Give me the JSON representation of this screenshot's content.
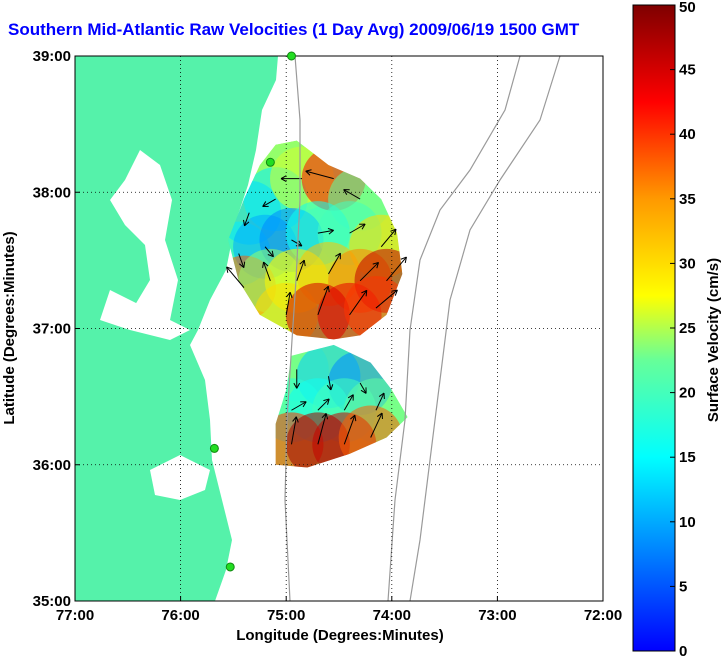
{
  "title": "Southern Mid-Atlantic Raw Velocities (1 Day Avg) 2009/06/19 1500 GMT",
  "colors": {
    "land": "#55f2aa",
    "water": "#ffffff",
    "bathymetry": "#9a9a9a",
    "vectors": "#000000",
    "title": "#0000ff",
    "station": "#22dd22"
  },
  "chart_data": {
    "type": "heatmap",
    "title": "Southern Mid-Atlantic Raw Velocities (1 Day Avg) 2009/06/19 1500 GMT",
    "xlabel": "Longitude (Degrees:Minutes)",
    "ylabel": "Latitude (Degrees:Minutes)",
    "xlim": [
      -77,
      -72
    ],
    "ylim": [
      35,
      39
    ],
    "x_tick_labels": [
      "77:00",
      "76:00",
      "75:00",
      "74:00",
      "73:00",
      "72:00"
    ],
    "x_tick_values": [
      -77,
      -76,
      -75,
      -74,
      -73,
      -72
    ],
    "y_tick_labels": [
      "35:00",
      "36:00",
      "37:00",
      "38:00",
      "39:00"
    ],
    "y_tick_values": [
      35,
      36,
      37,
      38,
      39
    ],
    "grid": "dotted",
    "colorbar": {
      "label": "Surface Velocity (cm/s)",
      "min": 0,
      "max": 50,
      "tick_labels": [
        "0",
        "5",
        "10",
        "15",
        "20",
        "25",
        "30",
        "35",
        "40",
        "45",
        "50"
      ],
      "tick_values": [
        0,
        5,
        10,
        15,
        20,
        25,
        30,
        35,
        40,
        45,
        50
      ]
    },
    "stations": [
      {
        "lon": -74.95,
        "lat": 39.0
      },
      {
        "lon": -75.15,
        "lat": 38.22
      },
      {
        "lon": -75.68,
        "lat": 36.12
      },
      {
        "lon": -75.53,
        "lat": 35.25
      }
    ],
    "regions": [
      {
        "name": "northern",
        "polygon": [
          [
            -75.1,
            38.35
          ],
          [
            -74.9,
            38.38
          ],
          [
            -74.6,
            38.2
          ],
          [
            -74.3,
            38.1
          ],
          [
            -74.1,
            37.95
          ],
          [
            -73.95,
            37.7
          ],
          [
            -73.9,
            37.4
          ],
          [
            -74.05,
            37.1
          ],
          [
            -74.3,
            36.95
          ],
          [
            -74.55,
            36.92
          ],
          [
            -74.9,
            36.95
          ],
          [
            -75.25,
            37.1
          ],
          [
            -75.45,
            37.35
          ],
          [
            -75.55,
            37.65
          ],
          [
            -75.4,
            37.95
          ],
          [
            -75.25,
            38.2
          ]
        ]
      },
      {
        "name": "southern",
        "polygon": [
          [
            -74.95,
            36.8
          ],
          [
            -74.55,
            36.88
          ],
          [
            -74.2,
            36.75
          ],
          [
            -74.0,
            36.55
          ],
          [
            -73.85,
            36.35
          ],
          [
            -74.05,
            36.2
          ],
          [
            -74.4,
            36.08
          ],
          [
            -74.8,
            35.98
          ],
          [
            -75.1,
            36.0
          ],
          [
            -75.1,
            36.3
          ],
          [
            -75.0,
            36.55
          ]
        ]
      }
    ],
    "velocity_field": [
      {
        "lon": -75.35,
        "lat": 37.85,
        "speed": 12,
        "dir": 200
      },
      {
        "lon": -75.1,
        "lat": 37.95,
        "speed": 14,
        "dir": 240
      },
      {
        "lon": -74.85,
        "lat": 38.1,
        "speed": 26,
        "dir": 270
      },
      {
        "lon": -74.55,
        "lat": 38.1,
        "speed": 42,
        "dir": 285
      },
      {
        "lon": -74.3,
        "lat": 37.95,
        "speed": 22,
        "dir": 300
      },
      {
        "lon": -75.45,
        "lat": 37.55,
        "speed": 14,
        "dir": 160
      },
      {
        "lon": -75.2,
        "lat": 37.6,
        "speed": 10,
        "dir": 140
      },
      {
        "lon": -74.95,
        "lat": 37.65,
        "speed": 8,
        "dir": 120
      },
      {
        "lon": -74.7,
        "lat": 37.7,
        "speed": 16,
        "dir": 80
      },
      {
        "lon": -74.4,
        "lat": 37.7,
        "speed": 20,
        "dir": 60
      },
      {
        "lon": -74.1,
        "lat": 37.6,
        "speed": 30,
        "dir": 40
      },
      {
        "lon": -75.4,
        "lat": 37.3,
        "speed": 38,
        "dir": 320
      },
      {
        "lon": -75.15,
        "lat": 37.35,
        "speed": 24,
        "dir": 340
      },
      {
        "lon": -74.9,
        "lat": 37.35,
        "speed": 28,
        "dir": 20
      },
      {
        "lon": -74.6,
        "lat": 37.4,
        "speed": 32,
        "dir": 30
      },
      {
        "lon": -74.3,
        "lat": 37.35,
        "speed": 36,
        "dir": 45
      },
      {
        "lon": -74.05,
        "lat": 37.35,
        "speed": 46,
        "dir": 40
      },
      {
        "lon": -75.0,
        "lat": 37.1,
        "speed": 30,
        "dir": 10
      },
      {
        "lon": -74.7,
        "lat": 37.1,
        "speed": 45,
        "dir": 20
      },
      {
        "lon": -74.4,
        "lat": 37.1,
        "speed": 44,
        "dir": 35
      },
      {
        "lon": -74.15,
        "lat": 37.15,
        "speed": 40,
        "dir": 50
      },
      {
        "lon": -74.9,
        "lat": 36.7,
        "speed": 22,
        "dir": 180
      },
      {
        "lon": -74.6,
        "lat": 36.65,
        "speed": 12,
        "dir": 170
      },
      {
        "lon": -74.3,
        "lat": 36.6,
        "speed": 8,
        "dir": 150
      },
      {
        "lon": -74.95,
        "lat": 36.4,
        "speed": 18,
        "dir": 60
      },
      {
        "lon": -74.7,
        "lat": 36.4,
        "speed": 16,
        "dir": 45
      },
      {
        "lon": -74.45,
        "lat": 36.4,
        "speed": 20,
        "dir": 30
      },
      {
        "lon": -74.15,
        "lat": 36.4,
        "speed": 22,
        "dir": 25
      },
      {
        "lon": -74.95,
        "lat": 36.15,
        "speed": 40,
        "dir": 10
      },
      {
        "lon": -74.7,
        "lat": 36.15,
        "speed": 48,
        "dir": 15
      },
      {
        "lon": -74.45,
        "lat": 36.15,
        "speed": 46,
        "dir": 20
      },
      {
        "lon": -74.2,
        "lat": 36.2,
        "speed": 38,
        "dir": 25
      }
    ]
  }
}
